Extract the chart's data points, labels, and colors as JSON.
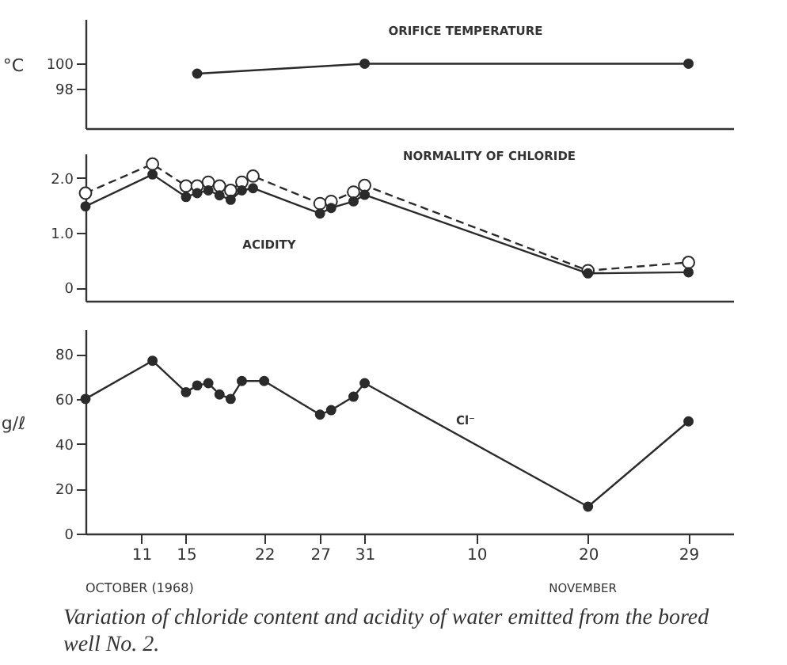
{
  "chart_data": [
    {
      "type": "line",
      "ylabel": "°C",
      "x": [
        "1968-10-16",
        "1968-10-31",
        "1968-11-29"
      ],
      "series": [
        {
          "name": "ORIFICE TEMPERATURE",
          "color": "#2b2b2b",
          "values": [
            99.2,
            100,
            100
          ]
        }
      ],
      "xlim": [
        "1968-10-06",
        "1968-12-03"
      ],
      "ylim": [
        94.8,
        103.6
      ],
      "yticks": [
        98,
        100
      ],
      "tick_labels": "y",
      "marker": "circle",
      "line_style": "solid"
    },
    {
      "type": "line",
      "x": [
        "1968-10-06",
        "1968-10-12",
        "1968-10-15",
        "1968-10-16",
        "1968-10-17",
        "1968-10-18",
        "1968-10-19",
        "1968-10-20",
        "1968-10-21",
        "1968-10-27",
        "1968-10-28",
        "1968-10-30",
        "1968-10-31",
        "1968-11-20",
        "1968-11-29"
      ],
      "series": [
        {
          "name": "NORMALITY OF CHLORIDE",
          "color": "#2b2b2b",
          "line_style": "dashed",
          "values": [
            1.72,
            2.25,
            1.85,
            1.85,
            1.92,
            1.85,
            1.77,
            1.92,
            2.03,
            1.53,
            1.57,
            1.74,
            1.86,
            0.31,
            0.46
          ]
        },
        {
          "name": "ACIDITY",
          "color": "#2b2b2b",
          "line_style": "solid",
          "values": [
            1.48,
            2.06,
            1.65,
            1.72,
            1.77,
            1.68,
            1.6,
            1.77,
            1.81,
            1.35,
            1.45,
            1.57,
            1.69,
            0.26,
            0.28
          ]
        }
      ],
      "xlim": [
        "1968-10-06",
        "1968-12-03"
      ],
      "ylim": [
        -0.24,
        2.44
      ],
      "yticks": [
        0,
        {
          "value": 1,
          "label": "1.0"
        },
        {
          "value": 2,
          "label": "2.0"
        }
      ],
      "tick_labels": "y",
      "marker": "circle"
    },
    {
      "type": "line",
      "ylabel": "g/ℓ",
      "xlabel": "OCTOBER (1968)",
      "x": [
        "1968-10-06",
        "1968-10-12",
        "1968-10-15",
        "1968-10-16",
        "1968-10-17",
        "1968-10-18",
        "1968-10-19",
        "1968-10-20",
        "1968-10-22",
        "1968-10-27",
        "1968-10-28",
        "1968-10-30",
        "1968-10-31",
        "1968-11-20",
        "1968-11-29"
      ],
      "series": [
        {
          "name": "Cl⁻",
          "color": "#2b2b2b",
          "values": [
            60,
            77,
            63,
            66,
            67,
            62,
            60,
            68,
            68,
            53,
            55,
            61,
            67,
            12,
            50
          ]
        }
      ],
      "xlim": [
        "1968-10-06",
        "1968-12-03"
      ],
      "ylim": [
        0,
        91
      ],
      "yticks": [
        0,
        20,
        40,
        60,
        80
      ],
      "xticks": [
        {
          "value": "1968-10-11",
          "label": "11"
        },
        {
          "value": "1968-10-15",
          "label": "15"
        },
        {
          "value": "1968-10-22",
          "label": "22"
        },
        {
          "value": "1968-10-27",
          "label": "27"
        },
        {
          "value": "1968-10-31",
          "label": "31"
        },
        {
          "value": "1968-11-10",
          "label": "10"
        },
        {
          "value": "1968-11-20",
          "label": "20"
        },
        {
          "value": "1968-11-29",
          "label": "29"
        }
      ],
      "marker": "circle",
      "line_style": "solid",
      "annotations": [
        "NOVEMBER",
        "Variation of chloride content and acidity of water emitted from the bored well No. 2."
      ]
    }
  ]
}
